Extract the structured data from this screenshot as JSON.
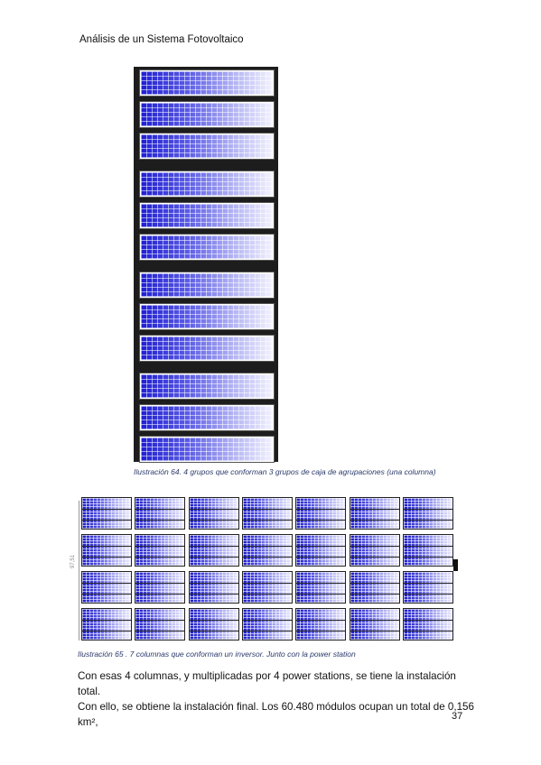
{
  "header": {
    "title": "Análisis de un Sistema Fotovoltaico"
  },
  "figure64": {
    "caption": "Ilustración 64. 4 grupos que conforman 3 grupos de caja de agrupaciones (una columna)",
    "groups": 4,
    "panels_per_group": 3
  },
  "figure65": {
    "caption": "Ilustración 65 . 7 columnas que conforman un inversor. Junto con la power station",
    "columns": 7,
    "rows": 4,
    "dimension_label": "97,51"
  },
  "body": {
    "line1": "Con esas 4 columnas, y multiplicadas por 4 power stations, se tiene la instalación total.",
    "line2": "Con ello, se obtiene la instalación final. Los 60.480 módulos ocupan un total de 0,156 km²,"
  },
  "page_number": "37"
}
